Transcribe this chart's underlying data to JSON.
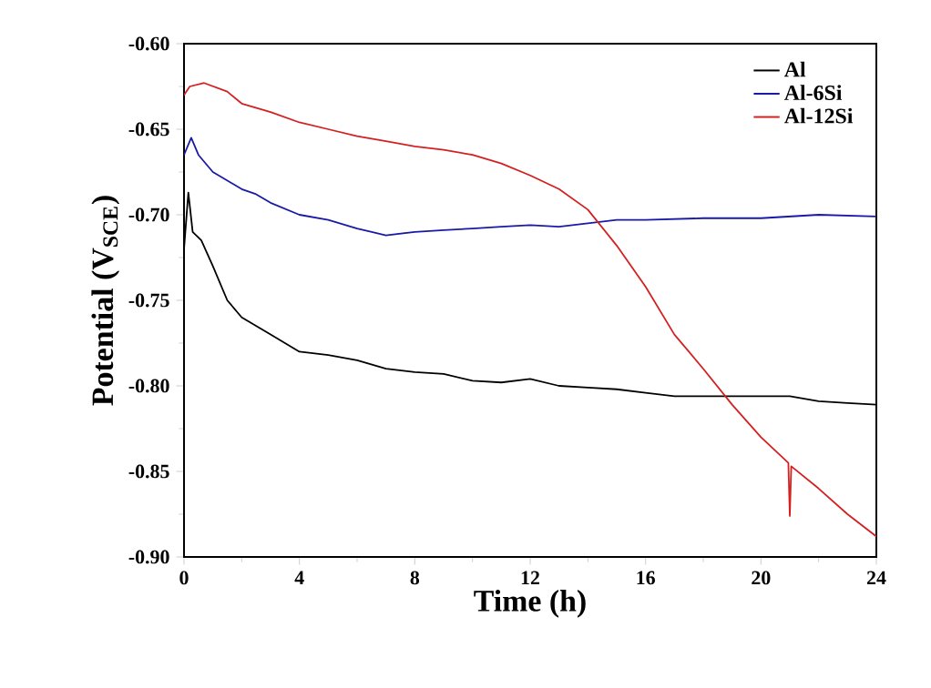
{
  "chart_data": {
    "type": "line",
    "xlabel": "Time (h)",
    "ylabel": "Potential (V$_{SCE}$)",
    "xlim": [
      0,
      24
    ],
    "xticks": [
      0,
      4,
      8,
      12,
      16,
      20,
      24
    ],
    "ylim": [
      -0.9,
      -0.6
    ],
    "yticks": [
      {
        "value": -0.9,
        "label": "-0.90"
      },
      {
        "value": -0.85,
        "label": "-0.85"
      },
      {
        "value": -0.8,
        "label": "-0.80"
      },
      {
        "value": -0.75,
        "label": "-0.75"
      },
      {
        "value": -0.7,
        "label": "-0.70"
      },
      {
        "value": -0.65,
        "label": "-0.65"
      },
      {
        "value": -0.6,
        "label": "-0.60"
      }
    ],
    "legend": "top right",
    "marker": "none",
    "line_style": "solid",
    "series": [
      {
        "name": "Al",
        "color": "#000000",
        "x": [
          0,
          0.15,
          0.3,
          0.6,
          1,
          1.5,
          2,
          3,
          4,
          5,
          6,
          7,
          8,
          9,
          10,
          11,
          12,
          13,
          14,
          15,
          16,
          17,
          18,
          19,
          20,
          21,
          22,
          23,
          24
        ],
        "values": [
          -0.72,
          -0.687,
          -0.71,
          -0.715,
          -0.73,
          -0.75,
          -0.76,
          -0.77,
          -0.78,
          -0.782,
          -0.785,
          -0.79,
          -0.792,
          -0.793,
          -0.797,
          -0.798,
          -0.796,
          -0.8,
          -0.801,
          -0.802,
          -0.804,
          -0.806,
          -0.806,
          -0.806,
          -0.806,
          -0.806,
          -0.809,
          -0.81,
          -0.811
        ]
      },
      {
        "name": "Al-6Si",
        "color": "#1a1aa8",
        "x": [
          0,
          0.25,
          0.5,
          1,
          1.5,
          2,
          2.5,
          3,
          4,
          5,
          6,
          7,
          8,
          9,
          10,
          11,
          12,
          13,
          14,
          15,
          16,
          18,
          20,
          22,
          24
        ],
        "values": [
          -0.665,
          -0.655,
          -0.665,
          -0.675,
          -0.68,
          -0.685,
          -0.688,
          -0.693,
          -0.7,
          -0.703,
          -0.708,
          -0.712,
          -0.71,
          -0.709,
          -0.708,
          -0.707,
          -0.706,
          -0.707,
          -0.705,
          -0.703,
          -0.703,
          -0.702,
          -0.702,
          -0.7,
          -0.701
        ]
      },
      {
        "name": "Al-12Si",
        "color": "#d42020",
        "x": [
          0,
          0.2,
          0.7,
          1.5,
          2,
          3,
          4,
          5,
          6,
          7,
          8,
          9,
          10,
          11,
          12,
          13,
          14,
          15,
          16,
          17,
          18,
          19,
          20,
          20.95,
          21,
          21.05,
          22,
          23,
          24
        ],
        "values": [
          -0.63,
          -0.625,
          -0.623,
          -0.628,
          -0.635,
          -0.64,
          -0.646,
          -0.65,
          -0.654,
          -0.657,
          -0.66,
          -0.662,
          -0.665,
          -0.67,
          -0.677,
          -0.685,
          -0.697,
          -0.718,
          -0.742,
          -0.77,
          -0.79,
          -0.811,
          -0.83,
          -0.845,
          -0.876,
          -0.847,
          -0.86,
          -0.875,
          -0.888
        ]
      }
    ]
  }
}
